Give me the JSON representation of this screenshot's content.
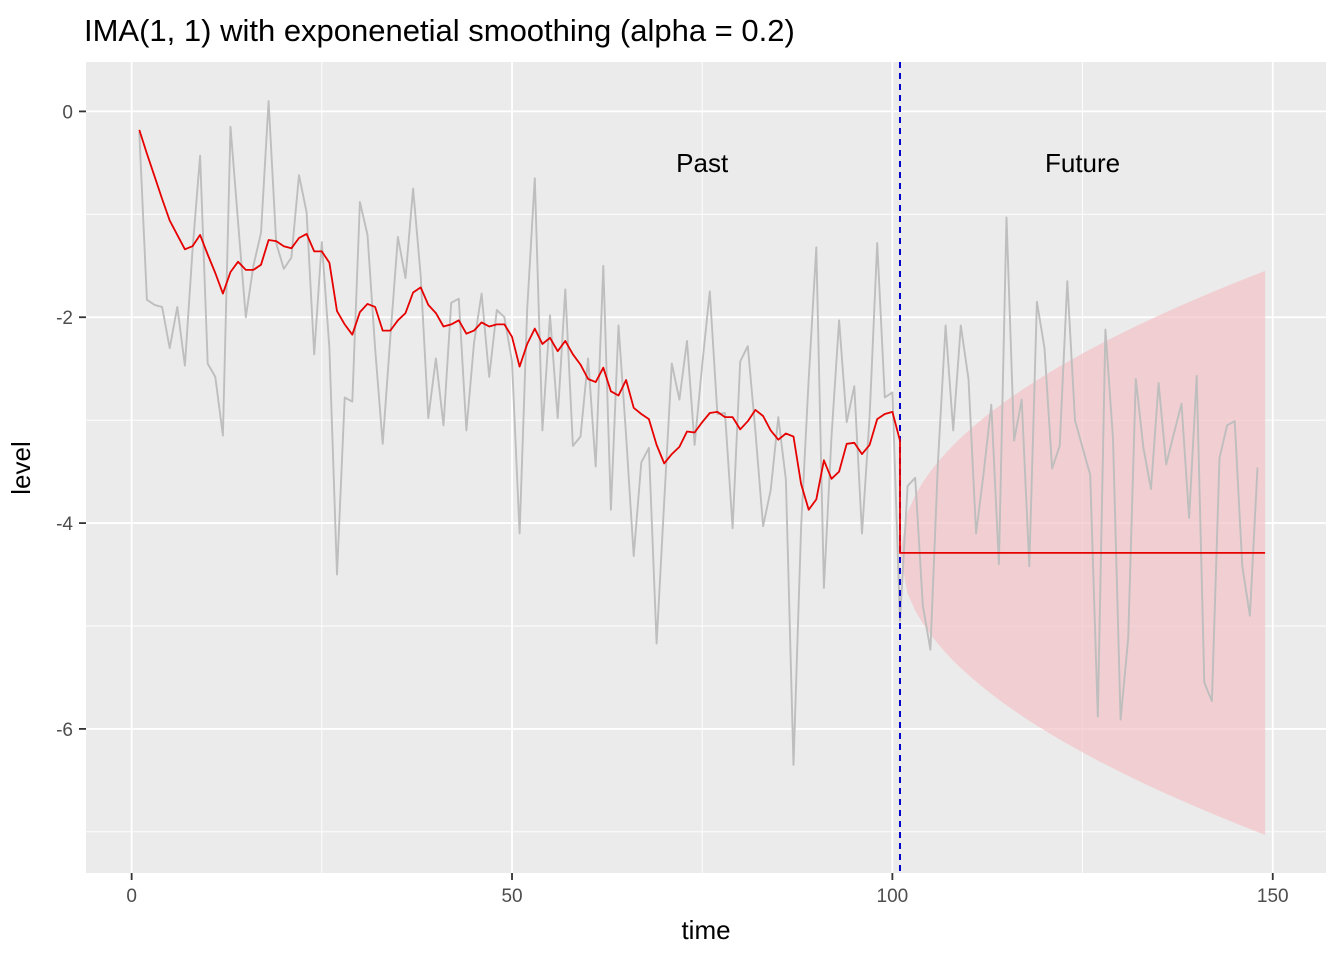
{
  "chart_data": {
    "type": "line",
    "title": "IMA(1, 1) with exponenetial smoothing (alpha = 0.2)",
    "xlabel": "time",
    "ylabel": "level",
    "xlim": [
      -6,
      157
    ],
    "ylim": [
      -7.4,
      0.48
    ],
    "x_ticks": [
      0,
      50,
      100,
      150
    ],
    "y_ticks": [
      0,
      -2,
      -4,
      -6
    ],
    "x_tick_labels": [
      "0",
      "50",
      "100",
      "150"
    ],
    "y_tick_labels": [
      "0",
      "-2",
      "-4",
      "-6"
    ],
    "x_minor_breaks": [
      25,
      75,
      125
    ],
    "y_minor_breaks": [
      -1,
      -3,
      -5,
      -7
    ],
    "grid": true,
    "panel_background": "#ebebeb",
    "colors": {
      "observed": "#bebebe",
      "smoothed": "#e60000",
      "forecast": "#e60000",
      "band": "#f4c2c6",
      "cutoff": "#0000cc"
    },
    "cutoff_x": 101,
    "annotations": [
      {
        "text": "Past",
        "x": 75,
        "y": -0.5
      },
      {
        "text": "Future",
        "x": 125,
        "y": -0.5
      }
    ],
    "observed": {
      "x_start": 1,
      "values": [
        -0.2,
        -1.83,
        -1.88,
        -1.9,
        -2.3,
        -1.9,
        -2.47,
        -1.35,
        -0.43,
        -2.45,
        -2.58,
        -3.15,
        -0.15,
        -1.08,
        -2.0,
        -1.5,
        -1.18,
        0.1,
        -1.28,
        -1.53,
        -1.42,
        -0.62,
        -0.98,
        -2.36,
        -1.27,
        -2.3,
        -4.5,
        -2.78,
        -2.82,
        -0.88,
        -1.2,
        -2.3,
        -3.23,
        -2.2,
        -1.22,
        -1.62,
        -0.75,
        -1.6,
        -2.98,
        -2.4,
        -3.05,
        -1.86,
        -1.82,
        -3.1,
        -2.25,
        -1.77,
        -2.58,
        -1.93,
        -2.0,
        -2.43,
        -4.1,
        -1.92,
        -0.65,
        -3.1,
        -1.98,
        -2.98,
        -1.73,
        -3.25,
        -3.16,
        -2.4,
        -3.45,
        -1.5,
        -3.87,
        -2.08,
        -3.15,
        -4.32,
        -3.41,
        -3.27,
        -5.17,
        -3.79,
        -2.45,
        -2.8,
        -2.23,
        -3.24,
        -2.46,
        -1.75,
        -2.94,
        -2.93,
        -4.05,
        -2.43,
        -2.28,
        -3.11,
        -4.03,
        -3.68,
        -2.97,
        -3.58,
        -6.35,
        -4.04,
        -2.6,
        -1.32,
        -4.63,
        -3.16,
        -2.03,
        -3.02,
        -2.67,
        -4.1,
        -2.97,
        -1.28,
        -2.78,
        -2.73,
        -4.95,
        -3.64,
        -3.56,
        -4.8,
        -5.23,
        -3.4,
        -2.08,
        -3.1,
        -2.08,
        -2.6,
        -4.1,
        -3.51,
        -2.85,
        -4.4,
        -1.03,
        -3.2,
        -2.8,
        -4.42,
        -1.85,
        -2.3,
        -3.47,
        -3.25,
        -1.65,
        -3.0,
        -3.27,
        -3.53,
        -5.88,
        -2.12,
        -3.18,
        -5.91,
        -5.12,
        -2.6,
        -3.27,
        -3.67,
        -2.64,
        -3.43,
        -3.13,
        -2.84,
        -3.95,
        -2.57,
        -5.55,
        -5.73,
        -3.37,
        -3.05,
        -3.01,
        -4.42,
        -4.9,
        -3.46
      ]
    },
    "smoothed": {
      "x_start": 1,
      "values": [
        -0.18,
        -0.41,
        -0.63,
        -0.85,
        -1.06,
        -1.2,
        -1.34,
        -1.31,
        -1.2,
        -1.39,
        -1.57,
        -1.77,
        -1.56,
        -1.46,
        -1.54,
        -1.54,
        -1.49,
        -1.25,
        -1.26,
        -1.31,
        -1.33,
        -1.23,
        -1.19,
        -1.36,
        -1.36,
        -1.47,
        -1.94,
        -2.07,
        -2.17,
        -1.95,
        -1.87,
        -1.9,
        -2.13,
        -2.13,
        -2.03,
        -1.96,
        -1.76,
        -1.71,
        -1.88,
        -1.96,
        -2.09,
        -2.07,
        -2.03,
        -2.16,
        -2.13,
        -2.05,
        -2.09,
        -2.07,
        -2.07,
        -2.19,
        -2.48,
        -2.26,
        -2.11,
        -2.26,
        -2.2,
        -2.33,
        -2.23,
        -2.36,
        -2.46,
        -2.6,
        -2.63,
        -2.49,
        -2.72,
        -2.76,
        -2.61,
        -2.88,
        -2.94,
        -2.99,
        -3.24,
        -3.42,
        -3.33,
        -3.26,
        -3.11,
        -3.12,
        -3.02,
        -2.93,
        -2.92,
        -2.97,
        -2.97,
        -3.09,
        -3.01,
        -2.9,
        -2.96,
        -3.1,
        -3.19,
        -3.13,
        -3.16,
        -3.62,
        -3.87,
        -3.77,
        -3.39,
        -3.57,
        -3.5,
        -3.23,
        -3.22,
        -3.33,
        -3.24,
        -2.99,
        -2.94,
        -2.92,
        -3.2
      ]
    },
    "forecast": {
      "x_start": 101,
      "x_end": 149,
      "level": -4.29
    },
    "band": {
      "x_start": 101,
      "x_end": 149,
      "center": -4.29,
      "half_width_start": 0.0,
      "half_width_end": 2.74
    }
  }
}
